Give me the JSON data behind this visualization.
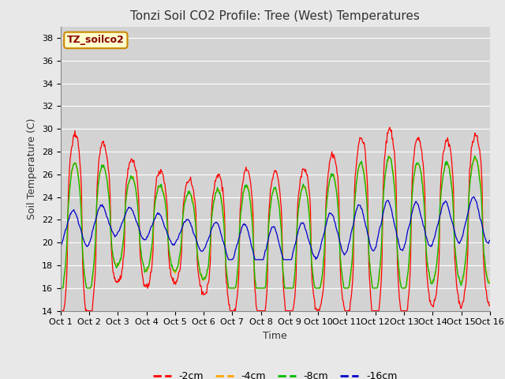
{
  "title": "Tonzi Soil CO2 Profile: Tree (West) Temperatures",
  "xlabel": "Time",
  "ylabel": "Soil Temperature (C)",
  "ylim": [
    14,
    39
  ],
  "yticks": [
    14,
    16,
    18,
    20,
    22,
    24,
    26,
    28,
    30,
    32,
    34,
    36,
    38
  ],
  "xtick_labels": [
    "Oct 1",
    "Oct 2",
    "Oct 3",
    "Oct 4",
    "Oct 5",
    "Oct 6",
    "Oct 7",
    "Oct 8",
    "Oct 9",
    "Oct 10",
    "Oct 11",
    "Oct 12",
    "Oct 13",
    "Oct 14",
    "Oct 15",
    "Oct 16"
  ],
  "legend_label": "TZ_soilco2",
  "series_labels": [
    "-2cm",
    "-4cm",
    "-8cm",
    "-16cm"
  ],
  "series_colors": [
    "#ff0000",
    "#ffa500",
    "#00bb00",
    "#0000cc"
  ],
  "title_fontsize": 11,
  "axis_fontsize": 9,
  "tick_fontsize": 8,
  "legend_fontsize": 9,
  "days": 15,
  "amp_by_day_2cm": [
    8.0,
    8.5,
    5.5,
    5.5,
    4.5,
    5.0,
    6.5,
    7.0,
    6.5,
    6.5,
    7.5,
    8.5,
    8.5,
    7.0,
    7.5
  ],
  "amp_by_day_48cm": [
    5.5,
    6.0,
    4.0,
    4.0,
    3.5,
    3.8,
    5.0,
    5.5,
    5.0,
    5.0,
    5.5,
    6.0,
    6.0,
    5.0,
    5.5
  ],
  "amp_by_day_16cm": [
    1.5,
    1.8,
    1.3,
    1.3,
    1.2,
    1.3,
    1.8,
    2.0,
    1.8,
    1.8,
    2.0,
    2.2,
    2.2,
    1.8,
    2.0
  ],
  "base_by_day": [
    21.0,
    21.5,
    22.0,
    21.5,
    21.0,
    20.5,
    20.0,
    19.5,
    19.5,
    20.5,
    21.0,
    21.5,
    21.5,
    21.5,
    22.0,
    22.0
  ]
}
